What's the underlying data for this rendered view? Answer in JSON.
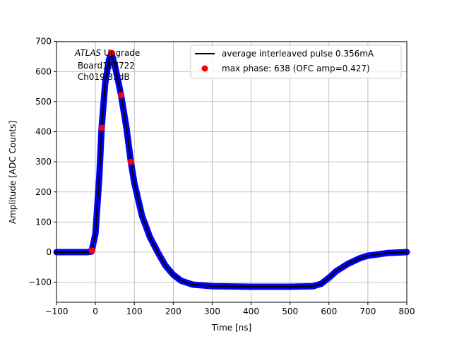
{
  "chart_data": {
    "type": "line",
    "xlabel": "Time [ns]",
    "ylabel": "Amplitude [ADC Counts]",
    "xlim": [
      -100,
      800
    ],
    "ylim": [
      -165,
      700
    ],
    "xticks": [
      -100,
      0,
      100,
      200,
      300,
      400,
      500,
      600,
      700,
      800
    ],
    "yticks": [
      -100,
      0,
      100,
      200,
      300,
      400,
      500,
      600,
      700
    ],
    "grid": true,
    "legend_placement": "top-right",
    "annotation": {
      "italic": "ATLAS",
      "line1_rest": " Upgrade",
      "line2": " Board187722",
      "line3": " Ch019 35dB"
    },
    "colors": {
      "samples": "#0000ff",
      "average": "#000000",
      "max_phase": "#ff0000",
      "grid": "#b0b0b0"
    },
    "series": [
      {
        "name": "average interleaved pulse 0.356mA",
        "kind": "line",
        "x": [
          -100,
          -20,
          -10,
          0,
          10,
          16,
          25,
          35,
          41,
          50,
          66,
          80,
          91,
          100,
          120,
          140,
          160,
          180,
          200,
          220,
          250,
          300,
          400,
          500,
          560,
          580,
          600,
          620,
          650,
          680,
          700,
          750,
          800
        ],
        "y": [
          0,
          0,
          2,
          60,
          250,
          413,
          560,
          640,
          660,
          620,
          521,
          410,
          300,
          230,
          120,
          50,
          0,
          -45,
          -75,
          -95,
          -108,
          -113,
          -115,
          -115,
          -113,
          -105,
          -85,
          -62,
          -38,
          -20,
          -12,
          -3,
          0
        ]
      },
      {
        "name": "max phase: 638 (OFC amp=0.427)",
        "kind": "scatter",
        "x": [
          -9,
          16,
          41,
          66,
          91
        ],
        "y": [
          5,
          413,
          662,
          521,
          300
        ]
      }
    ]
  }
}
